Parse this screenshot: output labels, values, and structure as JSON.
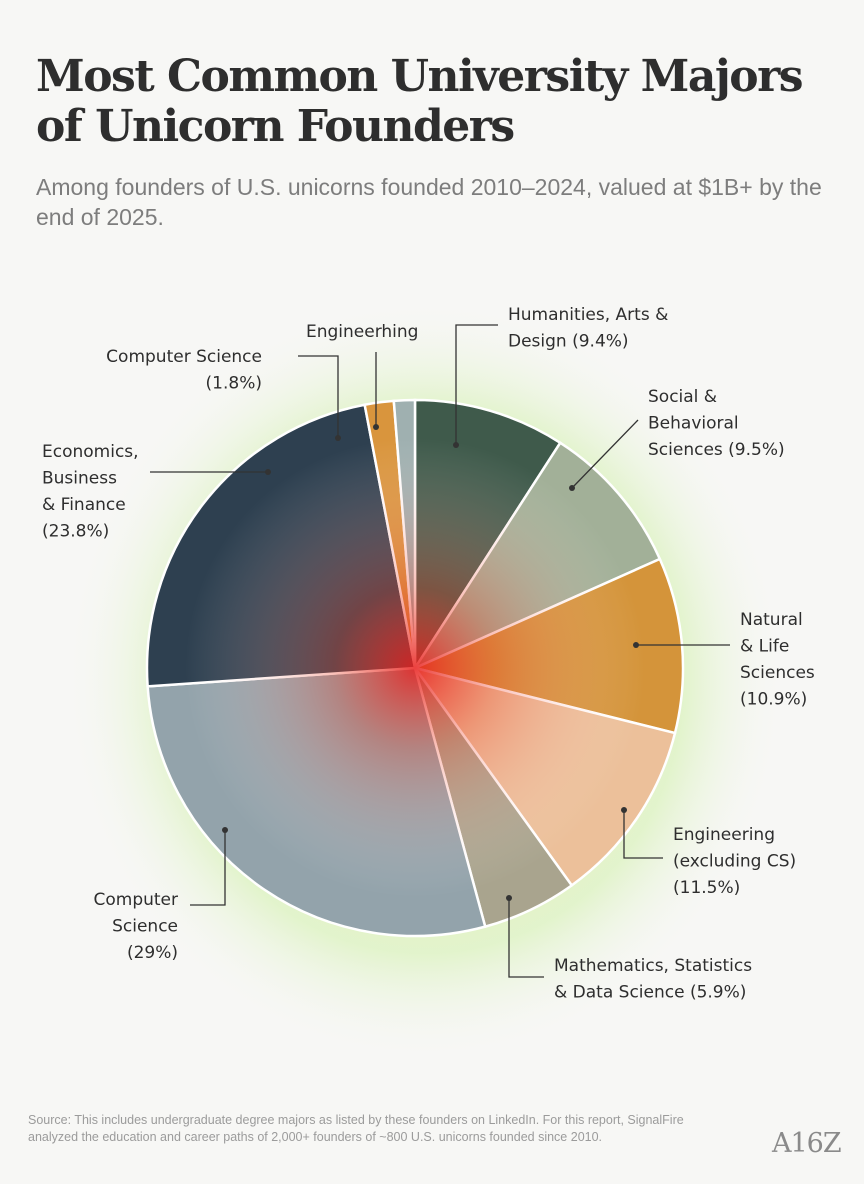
{
  "title": "Most Common University Majors of Unicorn Founders",
  "subtitle": "Among founders of U.S. unicorns founded 2010–2024, valued at $1B+ by the end of 2025.",
  "source": "Source: This includes undergraduate degree majors as listed by these founders on LinkedIn. For this report, SignalFire analyzed the education and career paths of 2,000+ founders of ~800 U.S. unicorns founded since 2010.",
  "logo": "A16Z",
  "chart_data": {
    "type": "pie",
    "title": "Most Common University Majors of Unicorn Founders",
    "start": "12 o'clock, clockwise",
    "slices": [
      {
        "label_lines": [
          "Humanities, Arts &",
          "Design (9.4%)"
        ],
        "value": 9.4,
        "color": "#3f5a4b"
      },
      {
        "label_lines": [
          "Social &",
          "Behavioral",
          "Sciences (9.5%)"
        ],
        "value": 9.5,
        "color": "#a2b098"
      },
      {
        "label_lines": [
          "Natural",
          "& Life",
          "Sciences",
          "(10.9%)"
        ],
        "value": 10.9,
        "color": "#d4943a"
      },
      {
        "label_lines": [
          "Engineering",
          "(excluding CS)",
          "(11.5%)"
        ],
        "value": 11.5,
        "color": "#ecc09a"
      },
      {
        "label_lines": [
          "Mathematics, Statistics",
          "& Data Science (5.9%)"
        ],
        "value": 5.9,
        "color": "#a9a48e"
      },
      {
        "label_lines": [
          "Computer",
          "Science",
          "(29%)"
        ],
        "value": 29,
        "color": "#93a3ab"
      },
      {
        "label_lines": [
          "Economics,",
          "Business",
          "& Finance",
          "(23.8%)"
        ],
        "value": 23.8,
        "color": "#2e4050"
      },
      {
        "label_lines": [
          "Computer Science",
          "(1.8%)"
        ],
        "value": 1.8,
        "color": "#d9953d"
      },
      {
        "label_lines": [
          "Engineerhing"
        ],
        "value": 1.3,
        "color": "#9fb0b0"
      }
    ]
  }
}
